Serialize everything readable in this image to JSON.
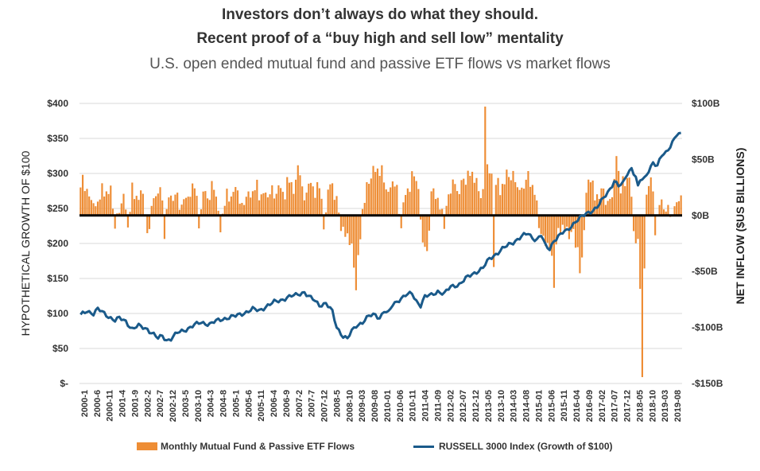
{
  "titles": {
    "line1": "Investors don’t always do what they should.",
    "line2": "Recent proof of a “buy high and sell low” mentality",
    "line3": "U.S. open ended mutual fund and passive ETF flows vs market flows"
  },
  "colors": {
    "bars": "#ee8d35",
    "line": "#1a5a8a",
    "zero_line": "#000000",
    "grid": "#d9d9d9"
  },
  "chart_data": {
    "type": "bar+line",
    "left_axis": {
      "label": "HYPOTHETICAL GROWTH OF $100",
      "ticks": [
        {
          "value": 400,
          "label": "$400"
        },
        {
          "value": 350,
          "label": "$350"
        },
        {
          "value": 300,
          "label": "$300"
        },
        {
          "value": 250,
          "label": "$250"
        },
        {
          "value": 200,
          "label": "$200"
        },
        {
          "value": 150,
          "label": "$150"
        },
        {
          "value": 100,
          "label": "$100"
        },
        {
          "value": 50,
          "label": "$50"
        },
        {
          "value": 0,
          "label": "$-"
        }
      ],
      "range": [
        0,
        400
      ]
    },
    "right_axis": {
      "label": "NET INFLOW ($US BILLIONS)",
      "ticks": [
        {
          "value": 100,
          "label": "$100B"
        },
        {
          "value": 50,
          "label": "$50B"
        },
        {
          "value": 0,
          "label": "$0B"
        },
        {
          "value": -50,
          "label": "-$50B"
        },
        {
          "value": -100,
          "label": "-$100B"
        },
        {
          "value": -150,
          "label": "-$150B"
        }
      ],
      "range": [
        -150,
        100
      ]
    },
    "x_labels": [
      "2000-1",
      "2000-6",
      "2000-11",
      "2001-4",
      "2001-9",
      "2002-2",
      "2002-7",
      "2002-12",
      "2003-5",
      "2003-10",
      "2004-3",
      "2004-8",
      "2005-1",
      "2005-6",
      "2005-11",
      "2006-4",
      "2006-9",
      "2007-2",
      "2007-7",
      "2007-12",
      "2008-5",
      "2008-10",
      "2009-03",
      "2009-08",
      "2010-01",
      "2010-06",
      "2010-11",
      "2011-04",
      "2011-09",
      "2012-02",
      "2012-07",
      "2012-12",
      "2013-05",
      "2013-10",
      "2014-03",
      "2014-08",
      "2015-01",
      "2015-06",
      "2015-11",
      "2016-04",
      "2016-09",
      "2017-02",
      "2017-07",
      "2017-12",
      "2018-05",
      "2018-10",
      "2019-03",
      "2019-08"
    ],
    "series": [
      {
        "name": "Monthly Mutual Fund & Passive ETF Flows",
        "type": "bar",
        "axis": "right",
        "anchors": [
          [
            0,
            20
          ],
          [
            1,
            38
          ],
          [
            3,
            25
          ],
          [
            5,
            18
          ],
          [
            7,
            10
          ],
          [
            9,
            15
          ],
          [
            11,
            20
          ],
          [
            14,
            22
          ],
          [
            16,
            -5
          ],
          [
            18,
            10
          ],
          [
            20,
            20
          ],
          [
            22,
            -8
          ],
          [
            24,
            18
          ],
          [
            26,
            15
          ],
          [
            29,
            22
          ],
          [
            31,
            -15
          ],
          [
            33,
            12
          ],
          [
            35,
            18
          ],
          [
            37,
            28
          ],
          [
            39,
            -20
          ],
          [
            41,
            20
          ],
          [
            43,
            15
          ],
          [
            45,
            22
          ],
          [
            47,
            12
          ],
          [
            49,
            18
          ],
          [
            51,
            20
          ],
          [
            53,
            25
          ],
          [
            55,
            -8
          ],
          [
            57,
            22
          ],
          [
            59,
            18
          ],
          [
            61,
            32
          ],
          [
            63,
            20
          ],
          [
            65,
            -12
          ],
          [
            67,
            10
          ],
          [
            69,
            15
          ],
          [
            71,
            22
          ],
          [
            73,
            26
          ],
          [
            75,
            12
          ],
          [
            77,
            20
          ],
          [
            79,
            18
          ],
          [
            81,
            25
          ],
          [
            83,
            15
          ],
          [
            85,
            22
          ],
          [
            87,
            20
          ],
          [
            89,
            28
          ],
          [
            91,
            22
          ],
          [
            93,
            25
          ],
          [
            95,
            18
          ],
          [
            97,
            30
          ],
          [
            99,
            22
          ],
          [
            101,
            48
          ],
          [
            103,
            28
          ],
          [
            105,
            22
          ],
          [
            107,
            30
          ],
          [
            109,
            20
          ],
          [
            111,
            25
          ],
          [
            113,
            -10
          ],
          [
            115,
            25
          ],
          [
            117,
            32
          ],
          [
            119,
            18
          ],
          [
            121,
            -12
          ],
          [
            123,
            -15
          ],
          [
            125,
            -25
          ],
          [
            127,
            -45
          ],
          [
            128,
            -62
          ],
          [
            129,
            -35
          ],
          [
            130,
            -20
          ],
          [
            131,
            10
          ],
          [
            133,
            30
          ],
          [
            135,
            35
          ],
          [
            137,
            42
          ],
          [
            139,
            38
          ],
          [
            141,
            30
          ],
          [
            143,
            22
          ],
          [
            145,
            35
          ],
          [
            147,
            28
          ],
          [
            149,
            -10
          ],
          [
            151,
            20
          ],
          [
            153,
            25
          ],
          [
            155,
            35
          ],
          [
            157,
            25
          ],
          [
            159,
            -20
          ],
          [
            161,
            -30
          ],
          [
            163,
            22
          ],
          [
            165,
            15
          ],
          [
            167,
            10
          ],
          [
            169,
            -12
          ],
          [
            171,
            20
          ],
          [
            173,
            35
          ],
          [
            175,
            25
          ],
          [
            177,
            32
          ],
          [
            179,
            28
          ],
          [
            181,
            40
          ],
          [
            183,
            30
          ],
          [
            185,
            22
          ],
          [
            187,
            25
          ],
          [
            188,
            100
          ],
          [
            189,
            50
          ],
          [
            190,
            45
          ],
          [
            191,
            38
          ],
          [
            192,
            -45
          ],
          [
            193,
            28
          ],
          [
            195,
            22
          ],
          [
            197,
            30
          ],
          [
            199,
            35
          ],
          [
            201,
            40
          ],
          [
            203,
            30
          ],
          [
            205,
            25
          ],
          [
            207,
            32
          ],
          [
            209,
            28
          ],
          [
            211,
            22
          ],
          [
            213,
            -10
          ],
          [
            215,
            -18
          ],
          [
            217,
            -20
          ],
          [
            219,
            -35
          ],
          [
            220,
            -58
          ],
          [
            221,
            -25
          ],
          [
            223,
            -15
          ],
          [
            225,
            -10
          ],
          [
            227,
            -20
          ],
          [
            229,
            -12
          ],
          [
            231,
            -25
          ],
          [
            232,
            -50
          ],
          [
            233,
            -35
          ],
          [
            235,
            22
          ],
          [
            237,
            30
          ],
          [
            239,
            18
          ],
          [
            241,
            15
          ],
          [
            243,
            25
          ],
          [
            245,
            15
          ],
          [
            247,
            20
          ],
          [
            249,
            55
          ],
          [
            251,
            20
          ],
          [
            253,
            30
          ],
          [
            255,
            35
          ],
          [
            257,
            -12
          ],
          [
            259,
            -20
          ],
          [
            260,
            -60
          ],
          [
            261,
            -140
          ],
          [
            262,
            -45
          ],
          [
            263,
            20
          ],
          [
            265,
            35
          ],
          [
            267,
            -15
          ],
          [
            269,
            12
          ],
          [
            271,
            8
          ],
          [
            273,
            10
          ],
          [
            275,
            5
          ],
          [
            277,
            12
          ],
          [
            279,
            20
          ]
        ]
      },
      {
        "name": "RUSSELL 3000 Index (Growth of $100)",
        "type": "line",
        "axis": "left",
        "anchors": [
          [
            0,
            97
          ],
          [
            3,
            104
          ],
          [
            6,
            100
          ],
          [
            8,
            106
          ],
          [
            12,
            98
          ],
          [
            16,
            90
          ],
          [
            18,
            93
          ],
          [
            21,
            89
          ],
          [
            24,
            78
          ],
          [
            27,
            82
          ],
          [
            31,
            78
          ],
          [
            34,
            70
          ],
          [
            36,
            64
          ],
          [
            38,
            68
          ],
          [
            40,
            62
          ],
          [
            42,
            64
          ],
          [
            45,
            72
          ],
          [
            48,
            76
          ],
          [
            52,
            82
          ],
          [
            56,
            87
          ],
          [
            60,
            85
          ],
          [
            64,
            90
          ],
          [
            68,
            94
          ],
          [
            72,
            96
          ],
          [
            76,
            101
          ],
          [
            80,
            106
          ],
          [
            83,
            104
          ],
          [
            86,
            110
          ],
          [
            90,
            116
          ],
          [
            93,
            119
          ],
          [
            96,
            123
          ],
          [
            100,
            126
          ],
          [
            104,
            131
          ],
          [
            106,
            124
          ],
          [
            108,
            120
          ],
          [
            111,
            112
          ],
          [
            114,
            115
          ],
          [
            117,
            102
          ],
          [
            119,
            80
          ],
          [
            121,
            72
          ],
          [
            122,
            68
          ],
          [
            124,
            64
          ],
          [
            126,
            74
          ],
          [
            128,
            82
          ],
          [
            131,
            88
          ],
          [
            134,
            96
          ],
          [
            137,
            98
          ],
          [
            139,
            94
          ],
          [
            141,
            104
          ],
          [
            143,
            100
          ],
          [
            145,
            112
          ],
          [
            148,
            120
          ],
          [
            151,
            126
          ],
          [
            154,
            128
          ],
          [
            156,
            118
          ],
          [
            158,
            112
          ],
          [
            160,
            124
          ],
          [
            163,
            126
          ],
          [
            166,
            132
          ],
          [
            169,
            128
          ],
          [
            172,
            138
          ],
          [
            176,
            142
          ],
          [
            180,
            152
          ],
          [
            184,
            160
          ],
          [
            187,
            165
          ],
          [
            190,
            178
          ],
          [
            193,
            185
          ],
          [
            196,
            192
          ],
          [
            199,
            198
          ],
          [
            202,
            204
          ],
          [
            205,
            210
          ],
          [
            208,
            214
          ],
          [
            210,
            208
          ],
          [
            212,
            206
          ],
          [
            214,
            212
          ],
          [
            216,
            196
          ],
          [
            218,
            192
          ],
          [
            220,
            205
          ],
          [
            222,
            210
          ],
          [
            224,
            215
          ],
          [
            226,
            218
          ],
          [
            228,
            225
          ],
          [
            230,
            232
          ],
          [
            232,
            236
          ],
          [
            234,
            240
          ],
          [
            237,
            246
          ],
          [
            240,
            252
          ],
          [
            243,
            264
          ],
          [
            246,
            278
          ],
          [
            248,
            290
          ],
          [
            250,
            282
          ],
          [
            252,
            285
          ],
          [
            254,
            300
          ],
          [
            256,
            308
          ],
          [
            258,
            295
          ],
          [
            259,
            280
          ],
          [
            260,
            290
          ],
          [
            262,
            292
          ],
          [
            264,
            305
          ],
          [
            266,
            316
          ],
          [
            268,
            310
          ],
          [
            270,
            325
          ],
          [
            272,
            330
          ],
          [
            275,
            345
          ],
          [
            277,
            355
          ]
        ]
      }
    ],
    "legend": {
      "position": "bottom"
    }
  }
}
